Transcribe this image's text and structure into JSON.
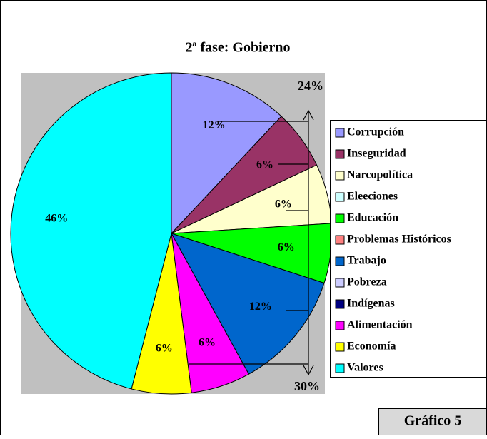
{
  "chart_data": {
    "type": "pie",
    "title": "2ª fase: Gobierno",
    "categories": [
      "Corrupción",
      "Inseguridad",
      "Narcopolítica",
      "Eleeciones",
      "Educación",
      "Problemas Históricos",
      "Trabajo",
      "Pobreza",
      "Indígenas",
      "Alimentación",
      "Economía",
      "Valores"
    ],
    "values": [
      12,
      6,
      6,
      0,
      6,
      0,
      12,
      0,
      0,
      6,
      6,
      46
    ],
    "value_labels": [
      "12%",
      "6%",
      "6%",
      null,
      "6%",
      null,
      "12%",
      null,
      null,
      "6%",
      "6%",
      "46%"
    ],
    "colors": [
      "#9999FF",
      "#993366",
      "#FFFFCC",
      "#CCFFFF",
      "#00FF00",
      "#FF8080",
      "#0066CC",
      "#CCCCFF",
      "#000080",
      "#FF00FF",
      "#FFFF00",
      "#00FFFF"
    ],
    "annotations": [
      "24%",
      "30%",
      "Gráfico 5"
    ]
  }
}
